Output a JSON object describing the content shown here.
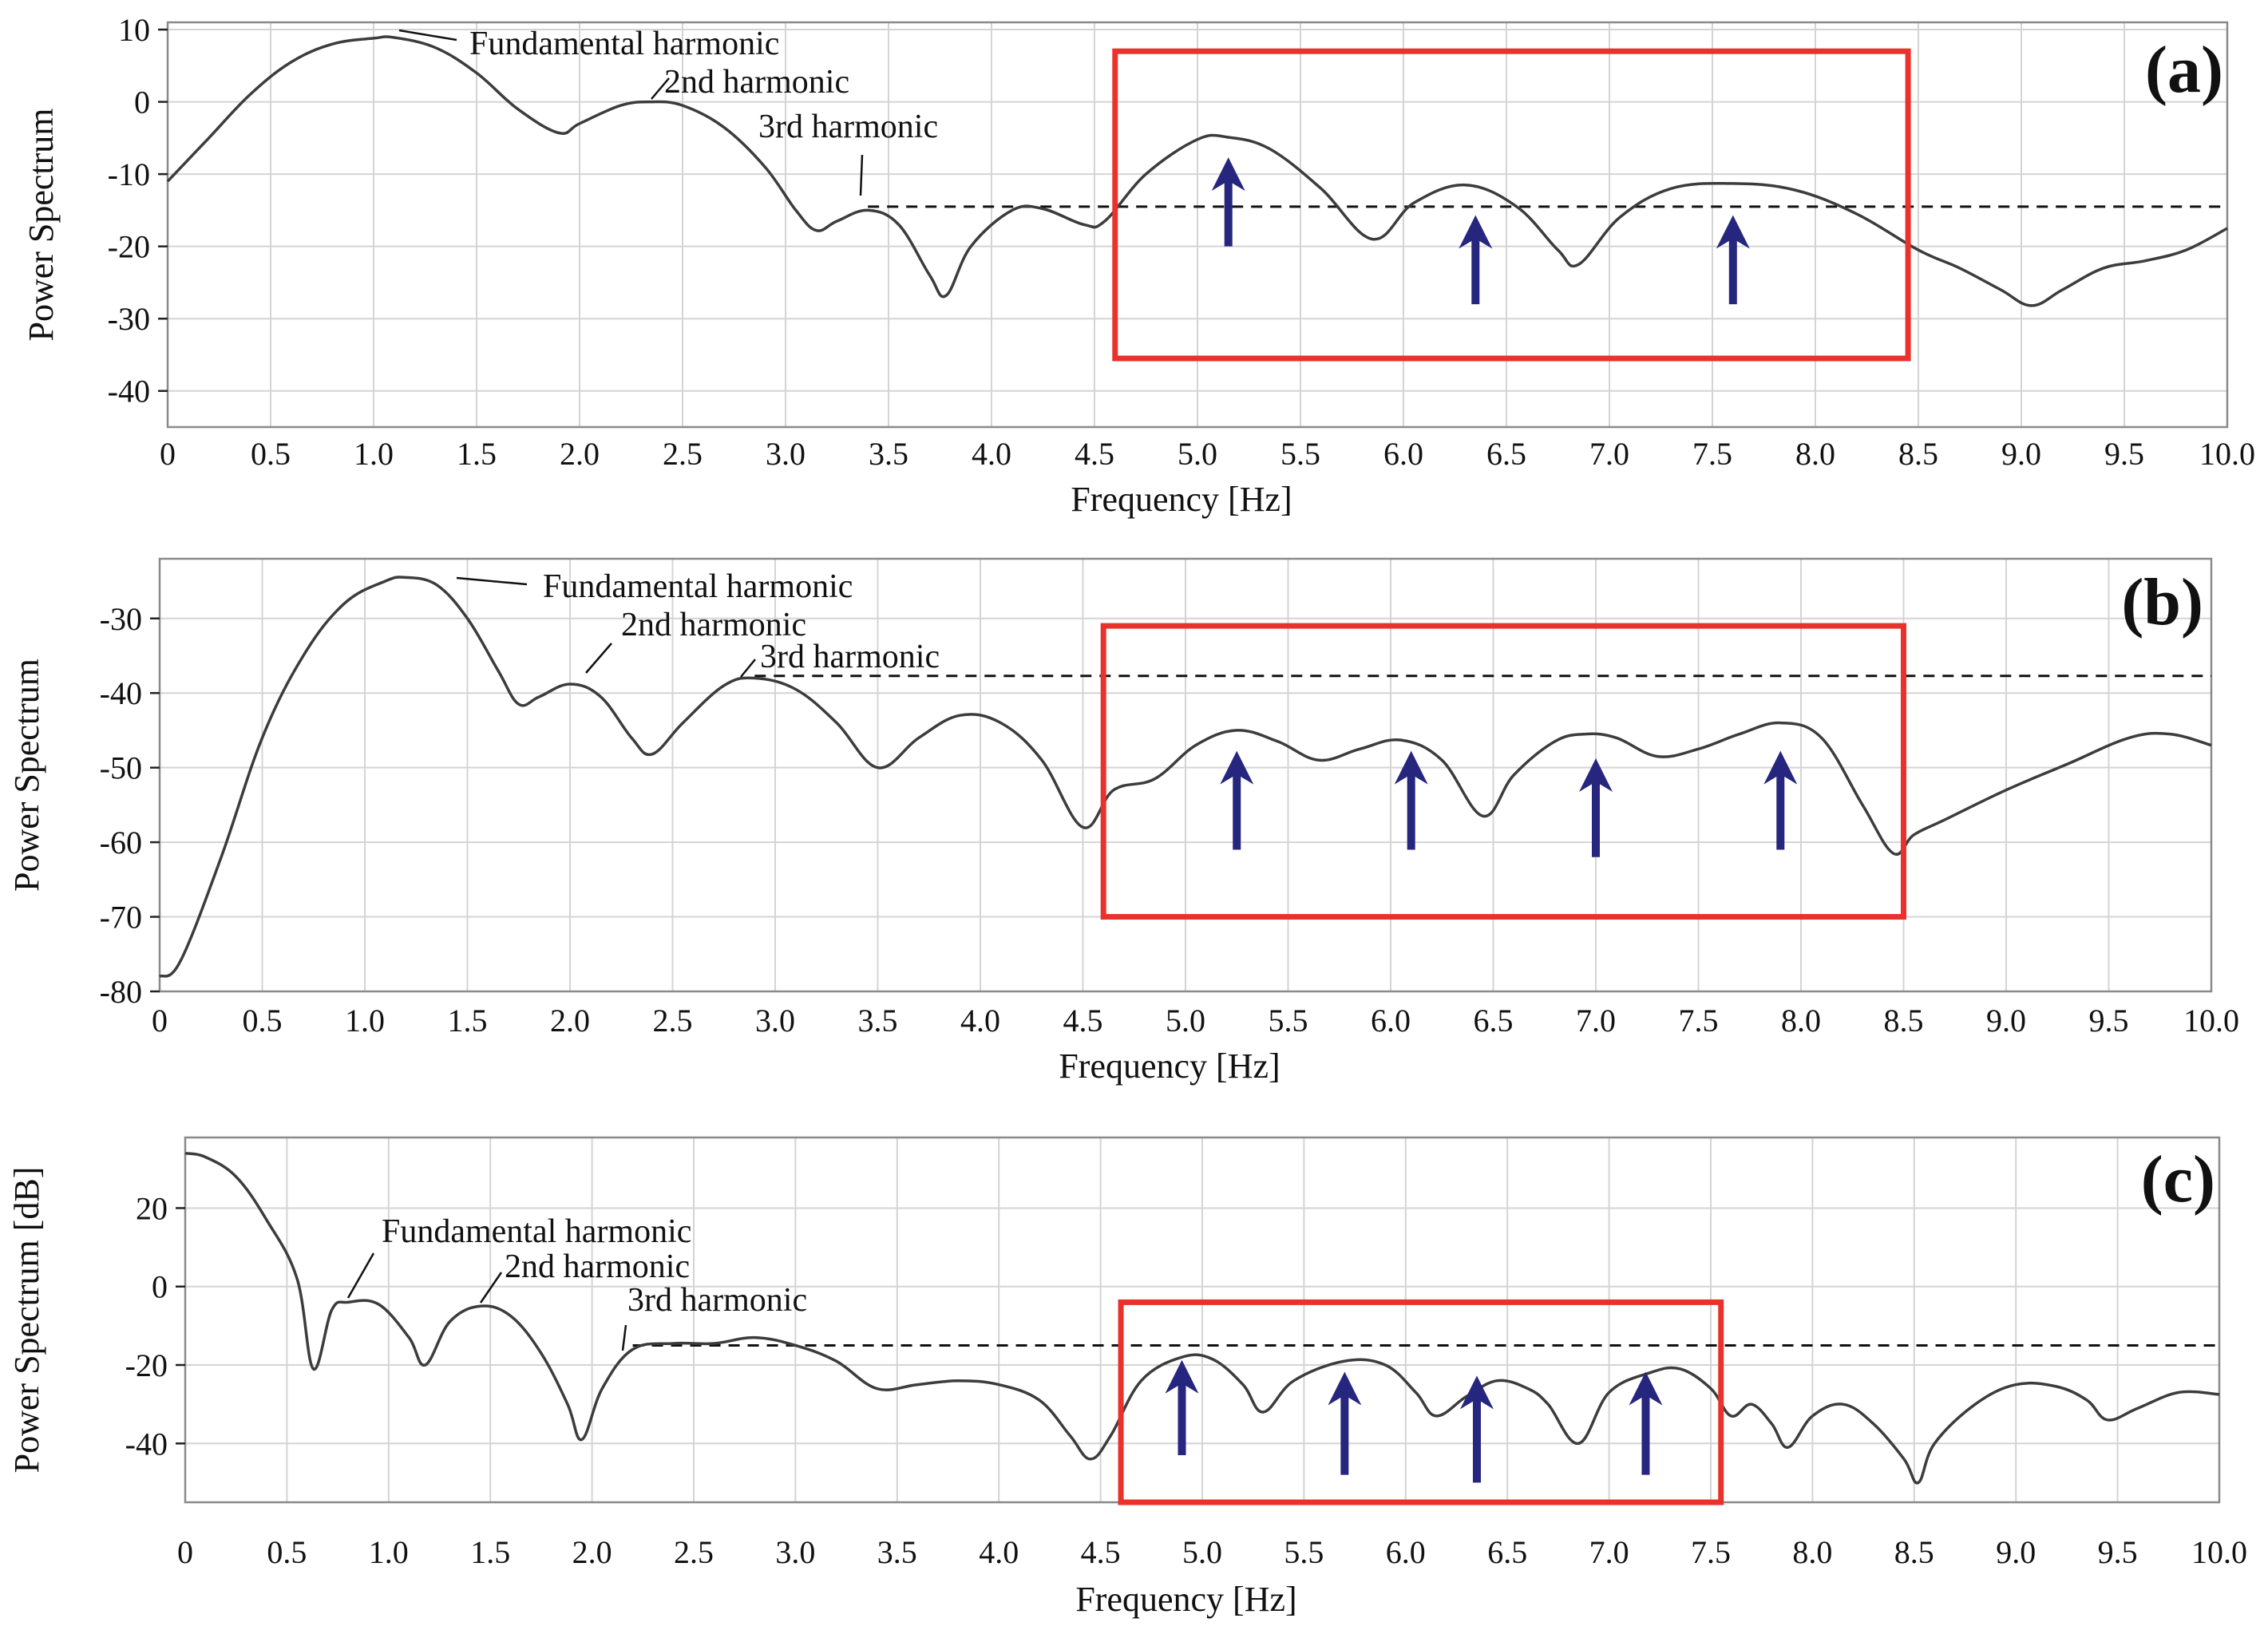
{
  "figure": {
    "colors": {
      "curve": "#3c3c3c",
      "grid": "#d4d4d4",
      "frame": "#8a8a8a",
      "highlight_box": "#e8322b",
      "arrow": "#26267f",
      "reference_line": "#111111"
    }
  },
  "chart_data": [
    {
      "type": "line",
      "panel_label": "(a)",
      "xlabel": "Frequency [Hz]",
      "ylabel": "Power Spectrum",
      "xlim": [
        0,
        10
      ],
      "ylim": [
        -45,
        11
      ],
      "x_ticks": [
        0,
        0.5,
        1.0,
        1.5,
        2.0,
        2.5,
        3.0,
        3.5,
        4.0,
        4.5,
        5.0,
        5.5,
        6.0,
        6.5,
        7.0,
        7.5,
        8.0,
        8.5,
        9.0,
        9.5,
        10.0
      ],
      "x_tick_labels": [
        "0",
        "0.5",
        "1.0",
        "1.5",
        "2.0",
        "2.5",
        "3.0",
        "3.5",
        "4.0",
        "4.5",
        "5.0",
        "5.5",
        "6.0",
        "6.5",
        "7.0",
        "7.5",
        "8.0",
        "8.5",
        "9.0",
        "9.5",
        "10.0"
      ],
      "y_ticks": [
        10,
        0,
        -10,
        -20,
        -30,
        -40
      ],
      "y_tick_labels": [
        "10",
        "0",
        "-10",
        "-20",
        "-30",
        "-40"
      ],
      "grid": true,
      "reference_level": -14.5,
      "reference_x_start": 3.4,
      "series": [
        {
          "name": "Power Spectrum",
          "x": [
            0,
            0.2,
            0.4,
            0.6,
            0.8,
            1.0,
            1.1,
            1.3,
            1.5,
            1.7,
            1.9,
            2.0,
            2.2,
            2.35,
            2.5,
            2.7,
            2.9,
            3.05,
            3.15,
            3.25,
            3.4,
            3.55,
            3.7,
            3.78,
            3.9,
            4.1,
            4.25,
            4.45,
            4.55,
            4.75,
            5.0,
            5.15,
            5.35,
            5.6,
            5.85,
            6.05,
            6.3,
            6.55,
            6.75,
            6.85,
            7.05,
            7.3,
            7.6,
            7.9,
            8.2,
            8.5,
            8.7,
            8.9,
            9.05,
            9.2,
            9.4,
            9.6,
            9.8,
            10.0
          ],
          "y": [
            -11,
            -5,
            1,
            5.5,
            8,
            8.8,
            8.9,
            7.5,
            4,
            -1,
            -4.3,
            -3,
            -0.5,
            0,
            -0.5,
            -3.5,
            -9,
            -15,
            -17.8,
            -16.5,
            -15,
            -17,
            -24,
            -26.8,
            -20,
            -15,
            -14.8,
            -17,
            -16.5,
            -10,
            -5.2,
            -4.9,
            -6.5,
            -12,
            -19,
            -14,
            -11.5,
            -14.5,
            -20.5,
            -22.5,
            -16,
            -12,
            -11.3,
            -12.2,
            -15.5,
            -20.5,
            -23,
            -26,
            -28.2,
            -26,
            -23,
            -22,
            -20.5,
            -17.5
          ]
        }
      ],
      "annotations": [
        {
          "text": "Fundamental harmonic",
          "x": 1.1,
          "y": 8.9
        },
        {
          "text": "2nd harmonic",
          "x": 2.35,
          "y": 0
        },
        {
          "text": "3rd harmonic",
          "x": 3.4,
          "y": -15
        }
      ],
      "highlight_region": {
        "x_range": [
          4.6,
          8.45
        ],
        "y_range": [
          -35.5,
          7
        ]
      },
      "arrows": [
        {
          "x": 5.15,
          "y_from": -20,
          "y_to": -10
        },
        {
          "x": 6.35,
          "y_from": -28,
          "y_to": -18
        },
        {
          "x": 7.6,
          "y_from": -28,
          "y_to": -18
        }
      ]
    },
    {
      "type": "line",
      "panel_label": "(b)",
      "xlabel": "Frequency [Hz]",
      "ylabel": "Power Spectrum",
      "xlim": [
        0,
        10
      ],
      "ylim": [
        -80,
        -22
      ],
      "x_ticks": [
        0,
        0.5,
        1.0,
        1.5,
        2.0,
        2.5,
        3.0,
        3.5,
        4.0,
        4.5,
        5.0,
        5.5,
        6.0,
        6.5,
        7.0,
        7.5,
        8.0,
        8.5,
        9.0,
        9.5,
        10.0
      ],
      "x_tick_labels": [
        "0",
        "0.5",
        "1.0",
        "1.5",
        "2.0",
        "2.5",
        "3.0",
        "3.5",
        "4.0",
        "4.5",
        "5.0",
        "5.5",
        "6.0",
        "6.5",
        "7.0",
        "7.5",
        "8.0",
        "8.5",
        "9.0",
        "9.5",
        "10.0"
      ],
      "y_ticks": [
        -30,
        -40,
        -50,
        -60,
        -70,
        -80
      ],
      "y_tick_labels": [
        "-30",
        "-40",
        "-50",
        "-60",
        "-70",
        "-80"
      ],
      "grid": true,
      "reference_level": -37.7,
      "reference_x_start": 2.9,
      "series": [
        {
          "name": "Power Spectrum",
          "x": [
            0,
            0.1,
            0.3,
            0.5,
            0.7,
            0.9,
            1.1,
            1.2,
            1.35,
            1.5,
            1.65,
            1.75,
            1.85,
            2.0,
            2.15,
            2.3,
            2.4,
            2.55,
            2.75,
            2.9,
            3.1,
            3.3,
            3.5,
            3.7,
            3.9,
            4.1,
            4.3,
            4.5,
            4.65,
            4.85,
            5.05,
            5.25,
            5.45,
            5.65,
            5.85,
            6.05,
            6.25,
            6.45,
            6.6,
            6.8,
            6.95,
            7.1,
            7.3,
            7.5,
            7.7,
            7.9,
            8.1,
            8.3,
            8.45,
            8.55,
            8.7,
            9.0,
            9.3,
            9.6,
            9.8,
            10.0
          ],
          "y": [
            -78,
            -76,
            -62,
            -46,
            -35,
            -28,
            -25,
            -24.5,
            -25.5,
            -30,
            -37,
            -41.5,
            -40.5,
            -38.8,
            -40.5,
            -46,
            -48.2,
            -44,
            -39,
            -38,
            -39.5,
            -44,
            -50,
            -46,
            -43,
            -44,
            -49,
            -58,
            -53,
            -51.5,
            -47,
            -45,
            -46.5,
            -49,
            -47.5,
            -46.3,
            -49,
            -56.5,
            -51,
            -46.5,
            -45.5,
            -46,
            -48.5,
            -47.5,
            -45.5,
            -44,
            -46,
            -55,
            -61.5,
            -59,
            -57,
            -53,
            -49.5,
            -46,
            -45.5,
            -47
          ]
        }
      ],
      "annotations": [
        {
          "text": "Fundamental harmonic",
          "x": 1.45,
          "y": -24.5
        },
        {
          "text": "2nd harmonic",
          "x": 2.05,
          "y": -38.8
        },
        {
          "text": "3rd harmonic",
          "x": 2.9,
          "y": -38
        }
      ],
      "highlight_region": {
        "x_range": [
          4.6,
          8.5
        ],
        "y_range": [
          -70,
          -31
        ]
      },
      "arrows": [
        {
          "x": 5.25,
          "y_from": -61,
          "y_to": -50
        },
        {
          "x": 6.1,
          "y_from": -61,
          "y_to": -50
        },
        {
          "x": 7.0,
          "y_from": -62,
          "y_to": -51
        },
        {
          "x": 7.9,
          "y_from": -61,
          "y_to": -50
        }
      ]
    },
    {
      "type": "line",
      "panel_label": "(c)",
      "xlabel": "Frequency [Hz]",
      "ylabel": "Power Spectrum [dB]",
      "xlim": [
        0,
        10
      ],
      "ylim": [
        -55,
        38
      ],
      "x_ticks": [
        0,
        0.5,
        1.0,
        1.5,
        2.0,
        2.5,
        3.0,
        3.5,
        4.0,
        4.5,
        5.0,
        5.5,
        6.0,
        6.5,
        7.0,
        7.5,
        8.0,
        8.5,
        9.0,
        9.5,
        10.0
      ],
      "x_tick_labels": [
        "0",
        "0.5",
        "1.0",
        "1.5",
        "2.0",
        "2.5",
        "3.0",
        "3.5",
        "4.0",
        "4.5",
        "5.0",
        "5.5",
        "6.0",
        "6.5",
        "7.0",
        "7.5",
        "8.0",
        "8.5",
        "9.0",
        "9.5",
        "10.0"
      ],
      "y_ticks": [
        20,
        0,
        -20,
        -40
      ],
      "y_tick_labels": [
        "20",
        "0",
        "-20",
        "-40"
      ],
      "grid": true,
      "reference_level": -15,
      "reference_x_start": 2.2,
      "series": [
        {
          "name": "Power Spectrum",
          "x": [
            0,
            0.1,
            0.25,
            0.4,
            0.55,
            0.63,
            0.72,
            0.8,
            0.95,
            1.1,
            1.18,
            1.3,
            1.45,
            1.6,
            1.75,
            1.88,
            1.95,
            2.05,
            2.2,
            2.4,
            2.6,
            2.8,
            3.0,
            3.2,
            3.4,
            3.6,
            3.8,
            4.0,
            4.2,
            4.35,
            4.45,
            4.55,
            4.7,
            4.9,
            5.05,
            5.2,
            5.3,
            5.45,
            5.7,
            5.9,
            6.05,
            6.15,
            6.3,
            6.45,
            6.6,
            6.7,
            6.85,
            7.0,
            7.2,
            7.35,
            7.5,
            7.6,
            7.7,
            7.8,
            7.88,
            8.0,
            8.15,
            8.3,
            8.45,
            8.52,
            8.6,
            8.8,
            9.0,
            9.2,
            9.35,
            9.45,
            9.6,
            9.8,
            10.0
          ],
          "y": [
            34,
            33,
            28,
            17,
            2,
            -21,
            -6,
            -4,
            -4.5,
            -13,
            -20,
            -9,
            -5,
            -7.5,
            -17,
            -30,
            -39,
            -26,
            -16,
            -14.5,
            -14.5,
            -13,
            -15,
            -19,
            -26,
            -25,
            -24,
            -25,
            -29,
            -38,
            -44,
            -38,
            -24,
            -18,
            -18.5,
            -25,
            -32,
            -24,
            -19,
            -20,
            -27,
            -33,
            -28,
            -24,
            -26,
            -30,
            -40,
            -27,
            -22,
            -21,
            -26,
            -33,
            -30,
            -35,
            -41,
            -33,
            -30,
            -35,
            -44,
            -50,
            -40,
            -30,
            -25,
            -25.5,
            -29,
            -34,
            -31,
            -27,
            -27.5
          ]
        }
      ],
      "annotations": [
        {
          "text": "Fundamental harmonic",
          "x": 0.8,
          "y": -4
        },
        {
          "text": "2nd harmonic",
          "x": 1.45,
          "y": -5
        },
        {
          "text": "3rd harmonic",
          "x": 2.2,
          "y": -14
        }
      ],
      "highlight_region": {
        "x_range": [
          4.6,
          7.55
        ],
        "y_range": [
          -55,
          -4
        ]
      },
      "arrows": [
        {
          "x": 4.9,
          "y_from": -43,
          "y_to": -23
        },
        {
          "x": 5.7,
          "y_from": -48,
          "y_to": -26
        },
        {
          "x": 6.35,
          "y_from": -50,
          "y_to": -27
        },
        {
          "x": 7.18,
          "y_from": -48,
          "y_to": -26
        }
      ]
    }
  ]
}
